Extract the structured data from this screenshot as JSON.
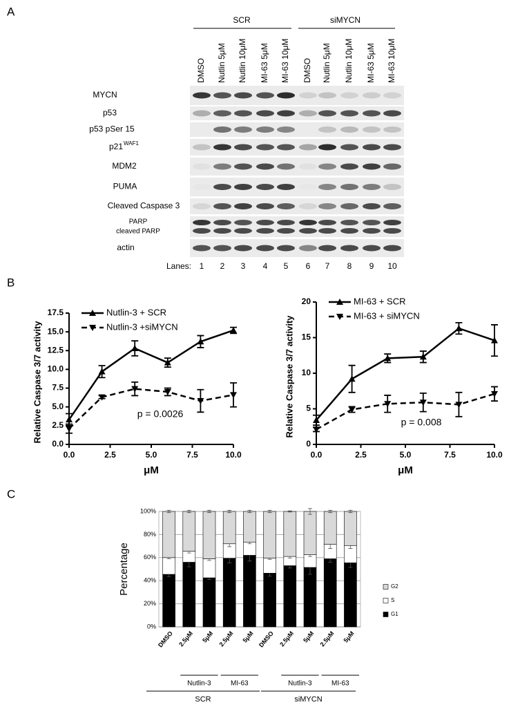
{
  "panel_labels": [
    "A",
    "B",
    "C"
  ],
  "blot": {
    "groups": [
      "SCR",
      "siMYCN"
    ],
    "lanes": [
      "DMSO",
      "Nutlin 5μM",
      "Nutlin 10μM",
      "MI-63 5μM",
      "MI-63 10μM",
      "DMSO",
      "Nutlin 5μM",
      "Nutlin 10μM",
      "MI-63 5μM",
      "MI-63 10μM"
    ],
    "rows": [
      {
        "label": "MYCN"
      },
      {
        "label": "p53"
      },
      {
        "label": "p53 pSer 15"
      },
      {
        "label": "p21",
        "sup": "WAF1"
      },
      {
        "label": "MDM2"
      },
      {
        "label": "PUMA"
      },
      {
        "label": "Cleaved Caspase 3"
      },
      {
        "label": "PARP",
        "label2": "cleaved PARP"
      },
      {
        "label": "actin"
      }
    ],
    "lanes_label": "Lanes:",
    "lane_numbers": [
      1,
      2,
      3,
      4,
      5,
      6,
      7,
      8,
      9,
      10
    ]
  },
  "chart_data": [
    {
      "type": "line",
      "ylabel": "Relative Caspase 3/7 activity",
      "xlabel": "μM",
      "annotation": "p = 0.0026",
      "x": [
        0,
        2,
        4,
        6,
        8,
        10
      ],
      "xlim": [
        0,
        10
      ],
      "xticks": [
        {
          "value": 0,
          "label": "0.0"
        },
        2.5,
        {
          "value": 5,
          "label": "5.0"
        },
        7.5,
        {
          "value": 10,
          "label": "10.0"
        }
      ],
      "ylim": [
        0,
        17.5
      ],
      "yticks": [
        {
          "value": 0,
          "label": "0.0"
        },
        2.5,
        {
          "value": 5,
          "label": "5.0"
        },
        7.5,
        {
          "value": 10,
          "label": "10.0"
        },
        12.5,
        {
          "value": 15,
          "label": "15.0"
        },
        17.5
      ],
      "legend": "upper left",
      "series": [
        {
          "name": "Nutlin-3 + SCR",
          "color": "#000000",
          "marker": "triangle-up",
          "linestyle": "solid",
          "values": [
            3.3,
            9.7,
            12.8,
            10.9,
            13.7,
            15.2
          ],
          "errors": [
            0.8,
            0.8,
            1.0,
            0.6,
            0.8,
            0.4
          ]
        },
        {
          "name": "Nutlin-3 +siMYCN",
          "color": "#000000",
          "marker": "triangle-down",
          "linestyle": "dashed",
          "values": [
            2.1,
            6.3,
            7.4,
            7.0,
            5.8,
            6.6
          ],
          "errors": [
            0.6,
            0.2,
            0.9,
            0.5,
            1.5,
            1.6
          ]
        }
      ]
    },
    {
      "type": "line",
      "ylabel": "Relative Caspase 3/7 activity",
      "xlabel": "μM",
      "annotation": "p = 0.008",
      "x": [
        0,
        2,
        4,
        6,
        8,
        10
      ],
      "xlim": [
        0,
        10
      ],
      "xticks": [
        {
          "value": 0,
          "label": "0.0"
        },
        2.5,
        {
          "value": 5,
          "label": "5.0"
        },
        7.5,
        {
          "value": 10,
          "label": "10.0"
        }
      ],
      "ylim": [
        0,
        20
      ],
      "yticks": [
        0,
        5,
        10,
        15,
        20
      ],
      "legend": "upper left",
      "series": [
        {
          "name": "MI-63 + SCR",
          "color": "#000000",
          "marker": "triangle-up",
          "linestyle": "solid",
          "values": [
            3.4,
            9.2,
            12.1,
            12.3,
            16.3,
            14.6
          ],
          "errors": [
            0.7,
            1.9,
            0.6,
            0.8,
            0.8,
            2.2
          ]
        },
        {
          "name": "MI-63 + siMYCN",
          "color": "#000000",
          "marker": "triangle-down",
          "linestyle": "dashed",
          "values": [
            2.1,
            4.9,
            5.7,
            5.9,
            5.6,
            7.1
          ],
          "errors": [
            0.3,
            0.4,
            1.2,
            1.3,
            1.7,
            1.0
          ]
        }
      ]
    },
    {
      "type": "stacked-bar",
      "ylabel": "Percentage",
      "categories": [
        "DMSO",
        "2.5μM",
        "5μM",
        "2.5μM",
        "5μM",
        "DMSO",
        "2.5μM",
        "5μM",
        "2.5μM",
        "5μM"
      ],
      "subgroups": [
        "Nutlin-3",
        "MI-63",
        "Nutlin-3",
        "MI-63"
      ],
      "supergroups": [
        "SCR",
        "siMYCN"
      ],
      "ylim": [
        0,
        100
      ],
      "yticks": [
        {
          "value": 0,
          "label": "0%"
        },
        {
          "value": 20,
          "label": "20%"
        },
        {
          "value": 40,
          "label": "40%"
        },
        {
          "value": 60,
          "label": "60%"
        },
        {
          "value": 80,
          "label": "80%"
        },
        {
          "value": 100,
          "label": "100%"
        }
      ],
      "grid": true,
      "legend": "right",
      "series": [
        {
          "name": "G1",
          "color": "#000000",
          "values": [
            45.5,
            56,
            42.5,
            59.5,
            62,
            46.5,
            53,
            51.5,
            59,
            55.5
          ],
          "errors": [
            2,
            4,
            1.5,
            4,
            5,
            2.5,
            2,
            6,
            3,
            4
          ]
        },
        {
          "name": "S",
          "color": "#ffffff",
          "values": [
            14.5,
            9.5,
            16.5,
            12.5,
            11.5,
            13,
            8,
            11,
            12.5,
            15
          ],
          "errors": [
            1,
            1.5,
            1.5,
            2.5,
            1.5,
            1,
            1.5,
            1.5,
            3.5,
            2.5
          ]
        },
        {
          "name": "G2",
          "color": "#d9d9d9",
          "values": [
            40,
            34.5,
            41,
            28,
            26.5,
            40.5,
            39,
            37.5,
            28.5,
            29.5
          ],
          "errors": [
            1,
            1,
            1,
            1,
            1,
            1,
            0.5,
            2.5,
            1,
            1
          ]
        }
      ]
    }
  ]
}
